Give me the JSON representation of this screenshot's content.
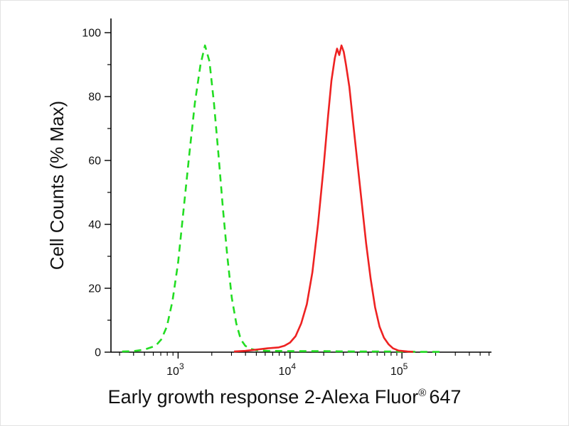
{
  "page": {
    "background": "#ffffff",
    "frame_border": "#e3e3e3"
  },
  "chart_data": {
    "type": "line",
    "subtype": "flow-cytometry-histogram",
    "title": "",
    "xlabel_main": "Early growth response 2-Alexa Fluor",
    "xlabel_registered": "®",
    "xlabel_suffix": "647",
    "ylabel": "Cell Counts (% Max)",
    "x_scale": "log",
    "x_range_log10": [
      2.4,
      5.8
    ],
    "x_tick_base": "10",
    "x_tick_exponents": [
      3,
      4,
      5
    ],
    "ylim": [
      0,
      100
    ],
    "y_major_ticks": [
      0,
      20,
      40,
      60,
      80,
      100
    ],
    "y_minor_step": 10,
    "axis_color": "#000000",
    "grid": "off",
    "legend": "none",
    "series": [
      {
        "name": "green-dashed-control",
        "color": "#22dd22",
        "style": "dashed",
        "dash": "10 7",
        "width": 2.6,
        "peak_x": 1738,
        "peak_y": 96,
        "points": [
          [
            316,
            0.2
          ],
          [
            398,
            0.3
          ],
          [
            501,
            0.8
          ],
          [
            631,
            2
          ],
          [
            708,
            4
          ],
          [
            794,
            8
          ],
          [
            891,
            16
          ],
          [
            1000,
            28
          ],
          [
            1122,
            45
          ],
          [
            1259,
            62
          ],
          [
            1413,
            78
          ],
          [
            1585,
            90
          ],
          [
            1738,
            96
          ],
          [
            1905,
            91
          ],
          [
            2089,
            78
          ],
          [
            2291,
            62
          ],
          [
            2512,
            45
          ],
          [
            2754,
            30
          ],
          [
            3020,
            17
          ],
          [
            3311,
            9
          ],
          [
            3631,
            4
          ],
          [
            3981,
            2
          ],
          [
            4467,
            1
          ],
          [
            5012,
            0.6
          ],
          [
            6310,
            0.4
          ],
          [
            10000,
            0.3
          ],
          [
            19953,
            0.3
          ],
          [
            39811,
            0.2
          ],
          [
            79433,
            0.2
          ],
          [
            158489,
            0.1
          ],
          [
            223872,
            0.1
          ]
        ]
      },
      {
        "name": "red-solid-stained",
        "color": "#ee2222",
        "style": "solid",
        "dash": null,
        "width": 2.6,
        "peak_x": 28840,
        "peak_y": 96,
        "points": [
          [
            3162,
            0.2
          ],
          [
            3981,
            0.4
          ],
          [
            5012,
            0.8
          ],
          [
            6310,
            1.2
          ],
          [
            7943,
            1.5
          ],
          [
            8913,
            2
          ],
          [
            10000,
            3
          ],
          [
            11220,
            5
          ],
          [
            12589,
            9
          ],
          [
            14125,
            15
          ],
          [
            15849,
            25
          ],
          [
            17783,
            40
          ],
          [
            19953,
            58
          ],
          [
            21878,
            74
          ],
          [
            23442,
            85
          ],
          [
            25119,
            92
          ],
          [
            26303,
            95
          ],
          [
            27542,
            93
          ],
          [
            28840,
            96
          ],
          [
            30200,
            94
          ],
          [
            31623,
            90
          ],
          [
            33884,
            83
          ],
          [
            36308,
            73
          ],
          [
            39811,
            60
          ],
          [
            43652,
            47
          ],
          [
            47863,
            34
          ],
          [
            52481,
            23
          ],
          [
            57544,
            14
          ],
          [
            63096,
            8
          ],
          [
            69183,
            4.5
          ],
          [
            75858,
            2.5
          ],
          [
            83176,
            1.2
          ],
          [
            93325,
            0.5
          ],
          [
            112202,
            0.2
          ],
          [
            125893,
            0.1
          ]
        ]
      }
    ]
  }
}
